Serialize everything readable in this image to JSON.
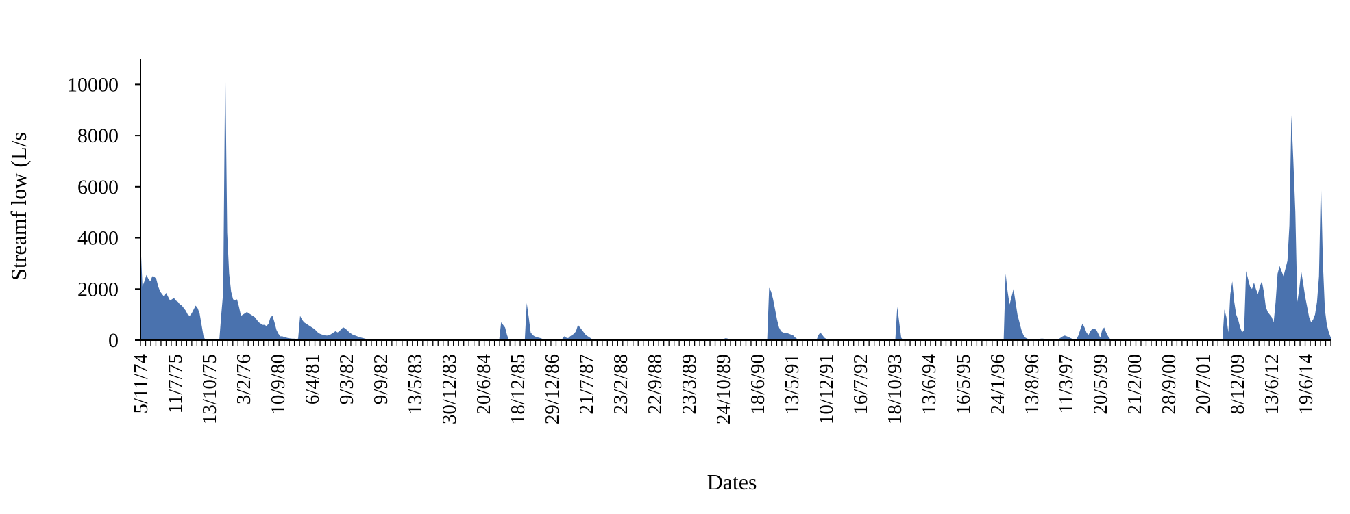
{
  "chart_data": {
    "type": "area",
    "title": "",
    "xlabel": "Dates",
    "ylabel": "Streamf low (L/s",
    "ylim": [
      0,
      11000
    ],
    "yticks": [
      0,
      2000,
      4000,
      6000,
      8000,
      10000
    ],
    "xtick_labels": [
      "5/11/74",
      "11/7/75",
      "13/10/75",
      "3/2/76",
      "10/9/80",
      "6/4/81",
      "9/3/82",
      "9/9/82",
      "13/5/83",
      "30/12/83",
      "20/6/84",
      "18/12/85",
      "29/12/86",
      "21/7/87",
      "23/2/88",
      "22/9/88",
      "23/3/89",
      "24/10/89",
      "18/6/90",
      "13/5/91",
      "10/12/91",
      "16/7/92",
      "18/10/93",
      "13/6/94",
      "16/5/95",
      "24/1/96",
      "13/8/96",
      "11/3/97",
      "20/5/99",
      "21/2/00",
      "28/9/00",
      "20/7/01",
      "8/12/09",
      "13/6/12",
      "19/6/14"
    ],
    "grid": false,
    "legend": "none",
    "color": "#4a72ae",
    "series": [
      {
        "values": [
          3900,
          2100,
          2300,
          2550,
          2400,
          2300,
          2500,
          2480,
          2400,
          2100,
          1900,
          1800,
          1700,
          1850,
          1700,
          1550,
          1600,
          1650,
          1550,
          1500,
          1400,
          1350,
          1250,
          1150,
          1000,
          950,
          1050,
          1200,
          1350,
          1250,
          1050,
          600,
          150,
          0,
          0,
          0,
          0,
          0,
          0,
          0,
          0,
          1000,
          1900,
          10900,
          4200,
          2600,
          1900,
          1600,
          1550,
          1600,
          1300,
          950,
          1000,
          1050,
          1100,
          1050,
          1000,
          950,
          900,
          800,
          700,
          650,
          600,
          600,
          550,
          650,
          900,
          950,
          700,
          400,
          250,
          150,
          150,
          120,
          100,
          80,
          70,
          60,
          60,
          50,
          60,
          950,
          800,
          700,
          650,
          600,
          550,
          500,
          450,
          380,
          300,
          250,
          220,
          200,
          180,
          180,
          200,
          250,
          300,
          350,
          300,
          350,
          450,
          500,
          450,
          380,
          300,
          250,
          200,
          180,
          150,
          120,
          100,
          80,
          60,
          40,
          20,
          10,
          0,
          0,
          0,
          0,
          0,
          0,
          0,
          0,
          0,
          0,
          0,
          0,
          0,
          0,
          0,
          0,
          0,
          0,
          0,
          0,
          0,
          0,
          0,
          0,
          0,
          0,
          0,
          0,
          0,
          0,
          0,
          0,
          0,
          0,
          0,
          0,
          0,
          0,
          0,
          0,
          0,
          0,
          0,
          0,
          0,
          0,
          0,
          0,
          0,
          0,
          0,
          0,
          0,
          0,
          0,
          0,
          0,
          0,
          0,
          0,
          0,
          0,
          0,
          0,
          0,
          700,
          600,
          500,
          200,
          0,
          0,
          0,
          0,
          0,
          0,
          0,
          0,
          0,
          1450,
          900,
          300,
          200,
          150,
          120,
          100,
          80,
          50,
          30,
          10,
          0,
          0,
          0,
          0,
          0,
          0,
          0,
          50,
          150,
          100,
          80,
          150,
          200,
          250,
          350,
          600,
          500,
          400,
          300,
          200,
          150,
          100,
          50,
          30,
          10,
          0,
          0,
          0,
          0,
          0,
          0,
          0,
          0,
          0,
          0,
          0,
          0,
          0,
          0,
          0,
          0,
          0,
          0,
          0,
          0,
          0,
          0,
          0,
          0,
          0,
          0,
          0,
          0,
          0,
          0,
          0,
          0,
          0,
          0,
          0,
          0,
          0,
          0,
          0,
          0,
          0,
          0,
          0,
          0,
          0,
          0,
          0,
          0,
          0,
          0,
          0,
          0,
          0,
          0,
          0,
          0,
          0,
          0,
          0,
          0,
          0,
          0,
          0,
          0,
          50,
          80,
          60,
          30,
          0,
          0,
          0,
          0,
          0,
          0,
          0,
          0,
          0,
          0,
          0,
          0,
          0,
          0,
          0,
          0,
          0,
          0,
          0,
          2050,
          1900,
          1600,
          1200,
          800,
          500,
          350,
          300,
          280,
          280,
          250,
          220,
          200,
          120,
          60,
          20,
          0,
          0,
          0,
          0,
          0,
          0,
          0,
          0,
          0,
          200,
          300,
          200,
          100,
          50,
          0,
          0,
          0,
          0,
          0,
          0,
          0,
          0,
          0,
          0,
          0,
          0,
          0,
          0,
          0,
          0,
          0,
          0,
          0,
          0,
          0,
          0,
          0,
          0,
          0,
          0,
          0,
          0,
          0,
          0,
          0,
          0,
          0,
          0,
          0,
          1300,
          700,
          100,
          0,
          0,
          0,
          0,
          0,
          0,
          0,
          0,
          0,
          0,
          0,
          0,
          0,
          0,
          0,
          0,
          0,
          0,
          0,
          0,
          0,
          0,
          0,
          0,
          0,
          0,
          0,
          0,
          0,
          0,
          0,
          0,
          0,
          0,
          0,
          0,
          0,
          0,
          0,
          0,
          0,
          0,
          0,
          0,
          0,
          0,
          0,
          0,
          0,
          0,
          0,
          0,
          2600,
          1900,
          1400,
          1700,
          2000,
          1500,
          1000,
          700,
          400,
          200,
          100,
          60,
          40,
          20,
          10,
          10,
          20,
          50,
          60,
          60,
          40,
          20,
          10,
          0,
          0,
          0,
          20,
          50,
          100,
          150,
          180,
          150,
          120,
          80,
          50,
          30,
          50,
          200,
          450,
          650,
          500,
          300,
          200,
          350,
          450,
          450,
          400,
          250,
          100,
          400,
          500,
          300,
          150,
          50,
          0,
          0,
          0,
          0,
          0,
          0,
          0,
          0,
          0,
          0,
          0,
          0,
          0,
          0,
          0,
          0,
          0,
          0,
          0,
          0,
          0,
          0,
          0,
          0,
          0,
          0,
          0,
          0,
          0,
          0,
          0,
          0,
          0,
          0,
          0,
          0,
          0,
          0,
          0,
          0,
          0,
          0,
          0,
          0,
          0,
          0,
          0,
          0,
          0,
          0,
          0,
          0,
          0,
          0,
          0,
          0,
          0,
          1200,
          900,
          300,
          1800,
          2300,
          1500,
          1000,
          800,
          500,
          300,
          400,
          2700,
          2400,
          2100,
          2000,
          2250,
          2000,
          1800,
          2100,
          2300,
          1900,
          1300,
          1100,
          1000,
          900,
          700,
          1500,
          2600,
          2900,
          2700,
          2500,
          2800,
          3100,
          4500,
          8800,
          7000,
          5000,
          1500,
          2000,
          2700,
          2200,
          1700,
          1300,
          900,
          700,
          800,
          1000,
          1500,
          2500,
          6300,
          3000,
          1200,
          600,
          300,
          100
        ]
      }
    ]
  }
}
